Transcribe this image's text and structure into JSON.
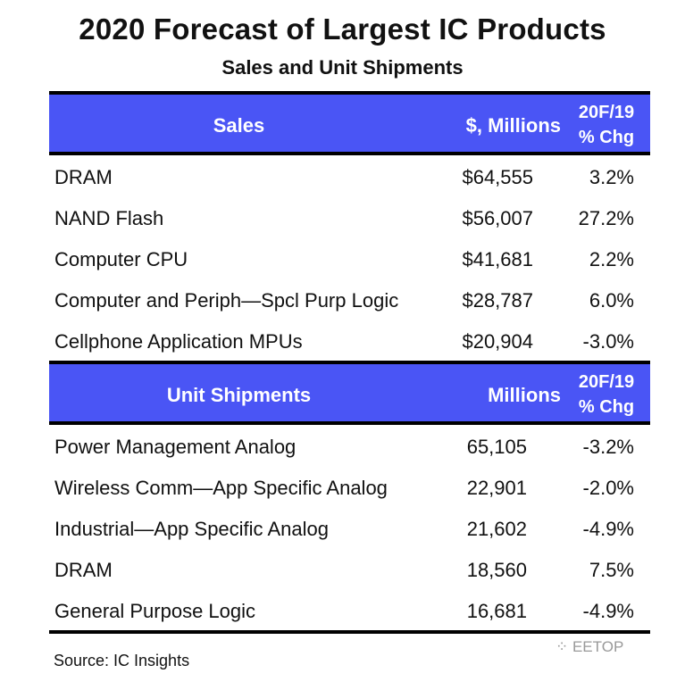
{
  "title": "2020 Forecast of Largest IC Products",
  "subtitle": "Sales and Unit Shipments",
  "header_color": "#4a55f5",
  "sales": {
    "headers": [
      "Sales",
      "$, Millions",
      "20F/19",
      "% Chg"
    ],
    "rows": [
      {
        "name": "DRAM",
        "value": "$64,555",
        "chg": "3.2%"
      },
      {
        "name": "NAND Flash",
        "value": "$56,007",
        "chg": "27.2%"
      },
      {
        "name": "Computer CPU",
        "value": "$41,681",
        "chg": "2.2%"
      },
      {
        "name": "Computer and Periph—Spcl Purp Logic",
        "value": "$28,787",
        "chg": "6.0%"
      },
      {
        "name": "Cellphone Application MPUs",
        "value": "$20,904",
        "chg": "-3.0%"
      }
    ]
  },
  "units": {
    "headers": [
      "Unit Shipments",
      "Millions",
      "20F/19",
      "% Chg"
    ],
    "rows": [
      {
        "name": "Power Management Analog",
        "value": "65,105",
        "chg": "-3.2%"
      },
      {
        "name": "Wireless Comm—App Specific Analog",
        "value": "22,901",
        "chg": "-2.0%"
      },
      {
        "name": "Industrial—App Specific Analog",
        "value": "21,602",
        "chg": "-4.9%"
      },
      {
        "name": "DRAM",
        "value": "18,560",
        "chg": "7.5%"
      },
      {
        "name": "General Purpose Logic",
        "value": "16,681",
        "chg": "-4.9%"
      }
    ]
  },
  "source": "Source:  IC Insights",
  "watermark": "EETOP"
}
